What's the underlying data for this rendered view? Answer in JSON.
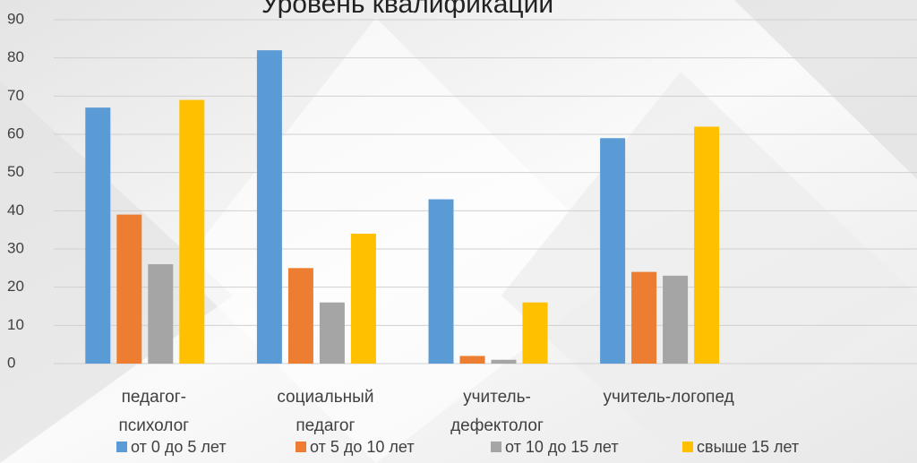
{
  "chart_data": {
    "type": "bar",
    "title": "Уровень квалификации",
    "categories": [
      "педагог-психолог",
      "социальный педагог",
      "учитель-дефектолог",
      "учитель-логопед",
      null
    ],
    "series": [
      {
        "name": "от 0 до 5 лет",
        "color": "#5b9bd5",
        "values": [
          67,
          82,
          43,
          59,
          null
        ]
      },
      {
        "name": "от 5 до 10 лет",
        "color": "#ed7d31",
        "values": [
          39,
          25,
          2,
          24,
          null
        ]
      },
      {
        "name": "от 10 до 15 лет",
        "color": "#a5a5a5",
        "values": [
          26,
          16,
          1,
          23,
          null
        ]
      },
      {
        "name": "свыше 15 лет",
        "color": "#ffc000",
        "values": [
          69,
          34,
          16,
          62,
          null
        ]
      }
    ],
    "ylim": [
      0,
      90
    ],
    "yticks": [
      0,
      10,
      20,
      30,
      40,
      50,
      60,
      70,
      80,
      90
    ],
    "grid": true,
    "legend": "bottom"
  }
}
